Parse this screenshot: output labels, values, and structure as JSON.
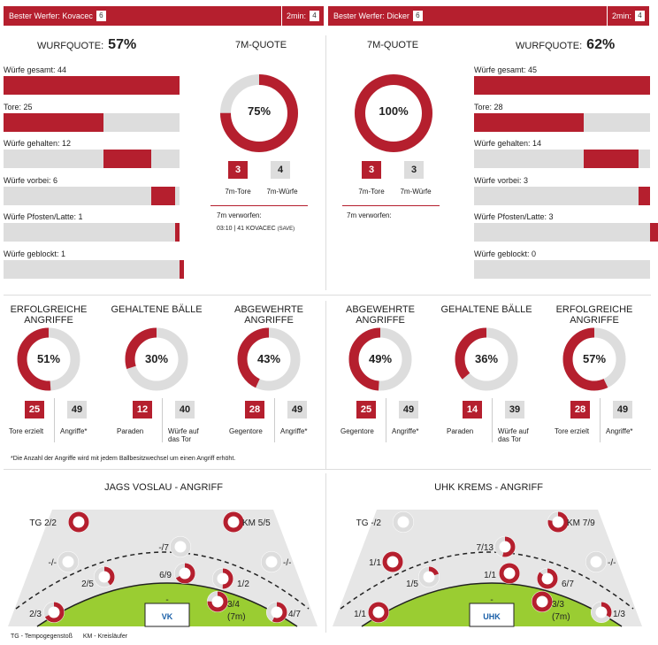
{
  "left_header": {
    "label": "Bester Werfer: Kovacec",
    "count": "6",
    "twomin_label": "2min:",
    "twomin": "4"
  },
  "right_header": {
    "label": "Bester Werfer: Dicker",
    "count": "6",
    "twomin_label": "2min:",
    "twomin": "4"
  },
  "left_stats": {
    "wurfquote_label": "WURFQUOTE:",
    "wurfquote": "57%",
    "rows": [
      {
        "label": "Würfe gesamt: 44",
        "value": 44,
        "max": 44
      },
      {
        "label": "Tore: 25",
        "value": 25,
        "max": 44
      },
      {
        "label": "Würfe gehalten: 12",
        "value": 12,
        "max": 44
      },
      {
        "label": "Würfe vorbei: 6",
        "value": 6,
        "max": 44
      },
      {
        "label": "Würfe Pfosten/Latte: 1",
        "value": 1,
        "max": 44
      },
      {
        "label": "Würfe geblockt: 1",
        "value": 1,
        "max": 44
      }
    ]
  },
  "right_stats": {
    "wurfquote_label": "WURFQUOTE:",
    "wurfquote": "62%",
    "rows": [
      {
        "label": "Würfe gesamt: 45",
        "value": 45,
        "max": 45
      },
      {
        "label": "Tore: 28",
        "value": 28,
        "max": 45
      },
      {
        "label": "Würfe gehalten: 14",
        "value": 14,
        "max": 45
      },
      {
        "label": "Würfe vorbei: 3",
        "value": 3,
        "max": 45
      },
      {
        "label": "Würfe Pfosten/Latte: 3",
        "value": 3,
        "max": 45
      },
      {
        "label": "Würfe geblockt: 0",
        "value": 0,
        "max": 45
      }
    ]
  },
  "left_7m": {
    "title": "7M-QUOTE",
    "pct": "75%",
    "fraction": 0.75,
    "tore": "3",
    "wuerfe": "4",
    "tore_label": "7m-Tore",
    "wuerfe_label": "7m-Würfe",
    "verworfen": "7m verworfen:",
    "detail": "03:10 | 41 KOVACEC",
    "detail_tag": "(SAVE)"
  },
  "right_7m": {
    "title": "7M-QUOTE",
    "pct": "100%",
    "fraction": 1.0,
    "tore": "3",
    "wuerfe": "3",
    "tore_label": "7m-Tore",
    "wuerfe_label": "7m-Würfe",
    "verworfen": "7m verworfen:"
  },
  "donuts": [
    {
      "title": "ERFOLGREICHE ANGRIFFE",
      "pct": "51%",
      "fraction": 0.51,
      "a": "25",
      "b": "49",
      "a_label": "Tore erzielt",
      "b_label": "Angriffe*"
    },
    {
      "title": "GEHALTENE BÄLLE",
      "pct": "30%",
      "fraction": 0.3,
      "a": "12",
      "b": "40",
      "a_label": "Paraden",
      "b_label": "Würfe auf das Tor"
    },
    {
      "title": "ABGEWEHRTE ANGRIFFE",
      "pct": "43%",
      "fraction": 0.43,
      "a": "28",
      "b": "49",
      "a_label": "Gegentore",
      "b_label": "Angriffe*"
    },
    {
      "title": "ABGEWEHRTE ANGRIFFE",
      "pct": "49%",
      "fraction": 0.49,
      "a": "25",
      "b": "49",
      "a_label": "Gegentore",
      "b_label": "Angriffe*"
    },
    {
      "title": "GEHALTENE BÄLLE",
      "pct": "36%",
      "fraction": 0.36,
      "a": "14",
      "b": "39",
      "a_label": "Paraden",
      "b_label": "Würfe auf das Tor"
    },
    {
      "title": "ERFOLGREICHE ANGRIFFE",
      "pct": "57%",
      "fraction": 0.57,
      "a": "28",
      "b": "49",
      "a_label": "Tore erzielt",
      "b_label": "Angriffe*"
    }
  ],
  "footnote": "*Die Anzahl der Angriffe wird mit jedem Ballbesitzwechsel um einen Angriff erhöht.",
  "court_left": {
    "title": "JAGS VOSLAU - ANGRIFF",
    "logo": "VK",
    "positions": [
      {
        "label": "TG 2/2",
        "fraction": 1.0
      },
      {
        "label": "KM 5/5",
        "fraction": 1.0
      },
      {
        "label": "-/7",
        "fraction": 0.0
      },
      {
        "label": "-/-",
        "fraction": 0.0
      },
      {
        "label": "-/-",
        "fraction": 0.0
      },
      {
        "label": "6/9",
        "fraction": 0.667
      },
      {
        "label": "2/5",
        "fraction": 0.4
      },
      {
        "label": "1/2",
        "fraction": 0.5
      },
      {
        "label": "-",
        "fraction": 0.0
      },
      {
        "label": "3/4",
        "fraction": 0.75
      },
      {
        "label": "(7m)",
        "fraction": 0
      },
      {
        "label": "2/3",
        "fraction": 0.667
      },
      {
        "label": "4/7",
        "fraction": 0.571
      }
    ]
  },
  "court_right": {
    "title": "UHK KREMS - ANGRIFF",
    "logo": "UHK",
    "positions": [
      {
        "label": "TG -/2",
        "fraction": 0.0
      },
      {
        "label": "KM 7/9",
        "fraction": 0.778
      },
      {
        "label": "7/13",
        "fraction": 0.538
      },
      {
        "label": "1/1",
        "fraction": 1.0
      },
      {
        "label": "-/-",
        "fraction": 0.0
      },
      {
        "label": "1/1",
        "fraction": 1.0
      },
      {
        "label": "1/5",
        "fraction": 0.2
      },
      {
        "label": "6/7",
        "fraction": 0.857
      },
      {
        "label": "-",
        "fraction": 0.0
      },
      {
        "label": "3/3",
        "fraction": 1.0
      },
      {
        "label": "(7m)",
        "fraction": 0
      },
      {
        "label": "1/1",
        "fraction": 1.0
      },
      {
        "label": "1/3",
        "fraction": 0.333
      }
    ]
  },
  "legend": {
    "tg": "TG - Tempogegenstoß",
    "km": "KM - Kreisläufer"
  },
  "colors": {
    "accent": "#b51f2e",
    "track": "#dddddd",
    "court": "#9acd32"
  }
}
